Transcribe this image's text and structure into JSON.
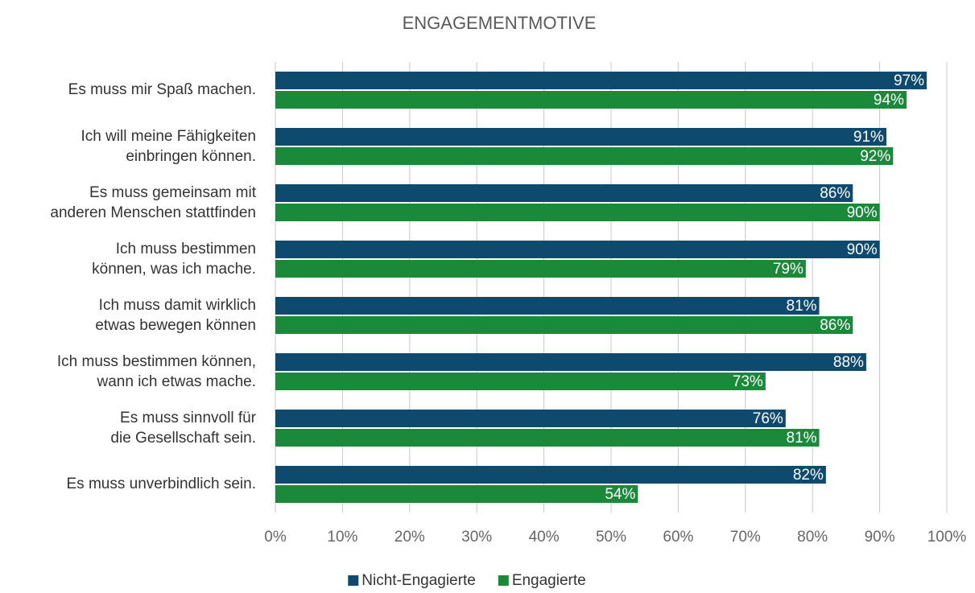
{
  "chart_data": {
    "type": "hbar",
    "title": "ENGAGEMENTMOTIVE",
    "categories": [
      "Es muss mir Spaß machen.",
      "Ich will meine Fähigkeiten einbringen können.",
      "Es muss gemeinsam mit anderen Menschen stattfinden",
      "Ich muss bestimmen können, was ich mache.",
      "Ich muss damit wirklich etwas bewegen können",
      "Ich muss bestimmen können, wann ich etwas mache.",
      "Es muss sinnvoll für die Gesellschaft sein.",
      "Es muss unverbindlich sein."
    ],
    "series": [
      {
        "name": "Nicht-Engagierte",
        "color": "#0e4a6e",
        "values": [
          97,
          91,
          86,
          90,
          81,
          88,
          76,
          82
        ],
        "value_labels": [
          "97%",
          "91%",
          "86%",
          "90%",
          "81%",
          "88%",
          "76%",
          "82%"
        ]
      },
      {
        "name": "Engagierte",
        "color": "#1a8a3a",
        "values": [
          94,
          92,
          90,
          79,
          86,
          73,
          81,
          54
        ],
        "value_labels": [
          "94%",
          "92%",
          "90%",
          "79%",
          "86%",
          "73%",
          "81%",
          "54%"
        ]
      }
    ],
    "xlim": [
      0,
      100
    ],
    "xticks": [
      {
        "value": 0,
        "label": "0%"
      },
      {
        "value": 10,
        "label": "10%"
      },
      {
        "value": 20,
        "label": "20%"
      },
      {
        "value": 30,
        "label": "30%"
      },
      {
        "value": 40,
        "label": "40%"
      },
      {
        "value": 50,
        "label": "50%"
      },
      {
        "value": 60,
        "label": "60%"
      },
      {
        "value": 70,
        "label": "70%"
      },
      {
        "value": 80,
        "label": "80%"
      },
      {
        "value": 90,
        "label": "90%"
      },
      {
        "value": 100,
        "label": "100%"
      }
    ],
    "grid": true,
    "legend": "bottom"
  }
}
